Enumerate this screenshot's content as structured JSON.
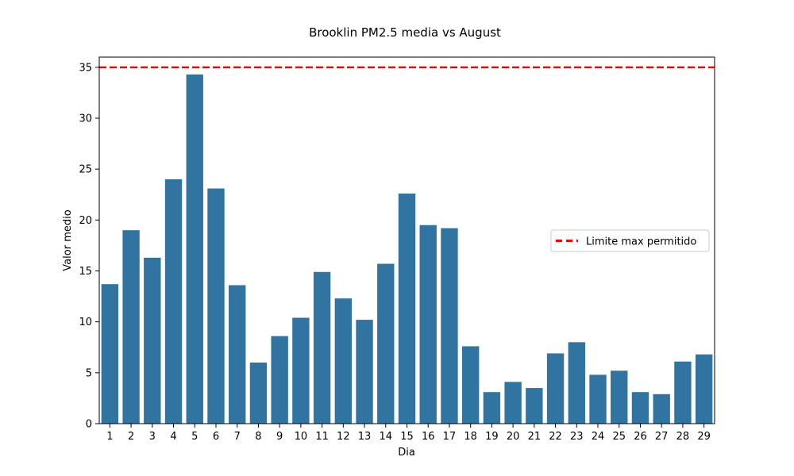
{
  "chart_data": {
    "type": "bar",
    "title": "Brooklin PM2.5 media vs August",
    "xlabel": "Dia",
    "ylabel": "Valor medio",
    "categories": [
      "1",
      "2",
      "3",
      "4",
      "5",
      "6",
      "7",
      "8",
      "9",
      "10",
      "11",
      "12",
      "13",
      "14",
      "15",
      "16",
      "17",
      "18",
      "19",
      "20",
      "21",
      "22",
      "23",
      "24",
      "25",
      "26",
      "27",
      "28",
      "29"
    ],
    "values": [
      13.7,
      19.0,
      16.3,
      24.0,
      34.3,
      23.1,
      13.6,
      6.0,
      8.6,
      10.4,
      14.9,
      12.3,
      10.2,
      15.7,
      22.6,
      19.5,
      19.2,
      7.6,
      3.1,
      4.1,
      3.5,
      6.9,
      8.0,
      4.8,
      5.2,
      3.1,
      2.9,
      6.1,
      6.8
    ],
    "ylim": [
      0,
      36
    ],
    "yticks": [
      0,
      5,
      10,
      15,
      20,
      25,
      30,
      35
    ],
    "reference_line": {
      "value": 35,
      "label": "Limite max permitido",
      "color": "#ff0000",
      "style": "dashed"
    },
    "bar_color": "#3274a1",
    "grid": false,
    "legend": {
      "placement": "center-right",
      "entries": [
        "Limite max permitido"
      ]
    }
  }
}
